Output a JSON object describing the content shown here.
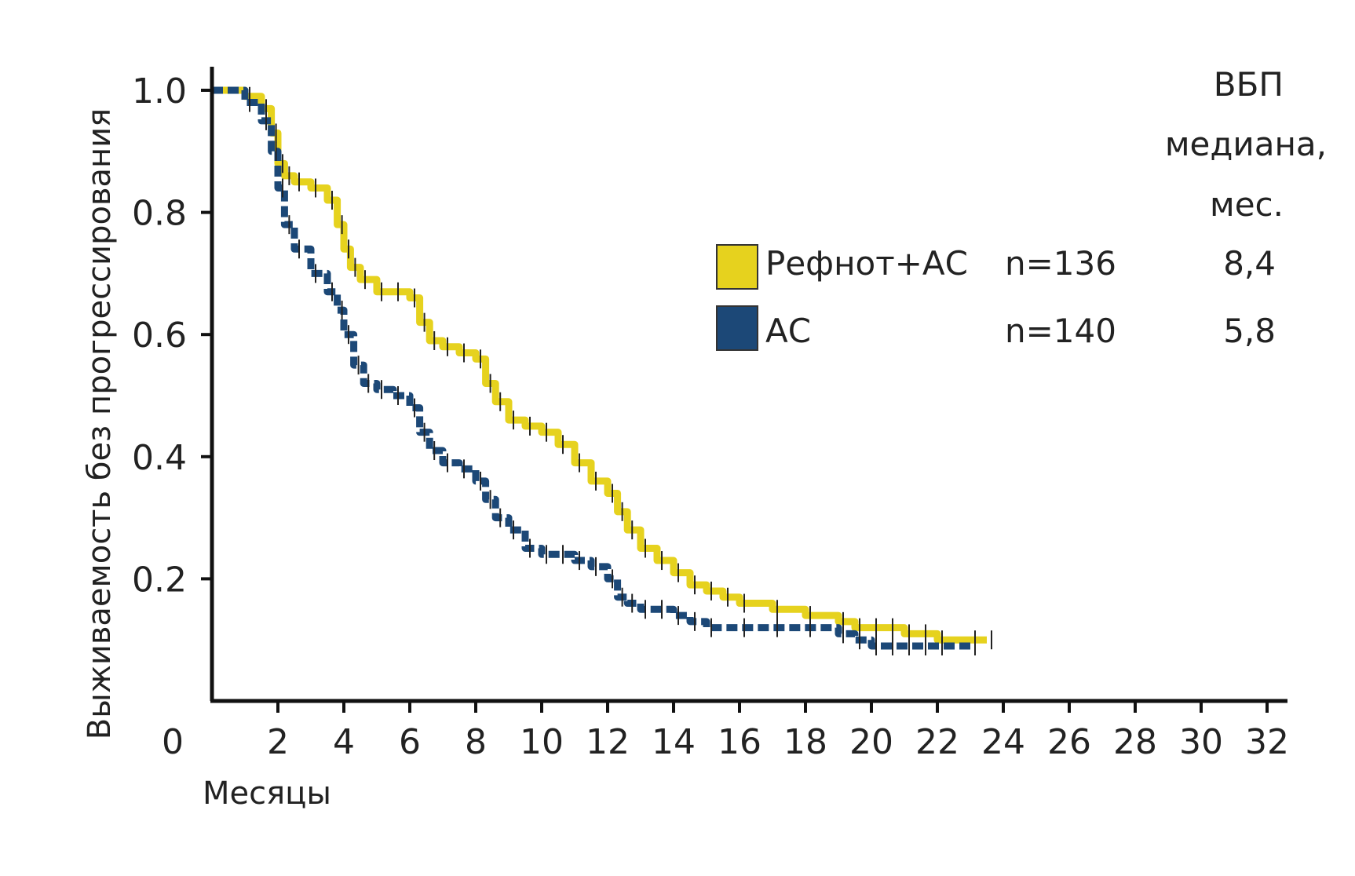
{
  "chart_data": {
    "type": "line",
    "title": "",
    "xlabel": "Месяцы",
    "ylabel": "Выживаемость без прогрессирования",
    "xlim": [
      0,
      32
    ],
    "ylim": [
      0,
      1.0
    ],
    "x_ticks": [
      "0",
      "2",
      "4",
      "6",
      "8",
      "10",
      "12",
      "14",
      "16",
      "18",
      "20",
      "22",
      "24",
      "26",
      "28",
      "30",
      "32"
    ],
    "y_ticks": [
      "0.2",
      "0.4",
      "0.6",
      "0.8",
      "1.0"
    ],
    "grid": false,
    "legend": {
      "placement": "top-right",
      "header_lines": [
        "ВБП",
        "медиана,",
        "мес."
      ]
    },
    "series": [
      {
        "name": "Рефнот+АС",
        "n_label": "n=136",
        "median_label": "8,4",
        "color": "#e6d21e",
        "style": "solid",
        "x": [
          0,
          1,
          1.5,
          1.8,
          2.0,
          2.2,
          2.5,
          3.0,
          3.5,
          3.8,
          4.0,
          4.2,
          4.5,
          5.0,
          5.5,
          6.0,
          6.3,
          6.6,
          7.0,
          7.5,
          8.0,
          8.3,
          8.6,
          9.0,
          9.5,
          10.0,
          10.5,
          11.0,
          11.5,
          12.0,
          12.3,
          12.6,
          13.0,
          13.5,
          14.0,
          14.5,
          15.0,
          15.5,
          16.0,
          17.0,
          18.0,
          19.0,
          19.5,
          20.0,
          20.5,
          21.0,
          21.5,
          22.0,
          23.0,
          23.5
        ],
        "y": [
          1.0,
          0.99,
          0.97,
          0.93,
          0.88,
          0.86,
          0.85,
          0.84,
          0.82,
          0.78,
          0.74,
          0.71,
          0.69,
          0.67,
          0.67,
          0.66,
          0.62,
          0.59,
          0.58,
          0.57,
          0.56,
          0.52,
          0.49,
          0.46,
          0.45,
          0.44,
          0.42,
          0.39,
          0.36,
          0.34,
          0.31,
          0.28,
          0.25,
          0.23,
          0.21,
          0.19,
          0.18,
          0.17,
          0.16,
          0.15,
          0.14,
          0.13,
          0.12,
          0.12,
          0.12,
          0.11,
          0.11,
          0.1,
          0.1,
          0.1
        ]
      },
      {
        "name": "АС",
        "n_label": "n=140",
        "median_label": "5,8",
        "color": "#1c4877",
        "style": "dashed",
        "x": [
          0,
          1,
          1.5,
          1.8,
          2.0,
          2.2,
          2.5,
          3.0,
          3.5,
          3.8,
          4.0,
          4.3,
          4.6,
          5.0,
          5.5,
          6.0,
          6.3,
          6.6,
          7.0,
          7.5,
          8.0,
          8.3,
          8.6,
          9.0,
          9.5,
          10.0,
          10.5,
          11.0,
          11.5,
          12.0,
          12.3,
          12.6,
          13.0,
          13.5,
          14.0,
          14.5,
          15.0,
          16.0,
          17.0,
          18.0,
          19.0,
          19.5,
          20.0,
          20.5,
          21.0,
          21.5,
          22.0,
          23.0
        ],
        "y": [
          1.0,
          0.98,
          0.95,
          0.9,
          0.84,
          0.78,
          0.74,
          0.7,
          0.67,
          0.64,
          0.6,
          0.55,
          0.52,
          0.51,
          0.5,
          0.48,
          0.44,
          0.41,
          0.39,
          0.38,
          0.36,
          0.33,
          0.3,
          0.28,
          0.25,
          0.24,
          0.24,
          0.23,
          0.22,
          0.2,
          0.17,
          0.16,
          0.15,
          0.15,
          0.14,
          0.13,
          0.12,
          0.12,
          0.12,
          0.12,
          0.11,
          0.1,
          0.09,
          0.09,
          0.09,
          0.09,
          0.09,
          0.09
        ]
      }
    ]
  }
}
